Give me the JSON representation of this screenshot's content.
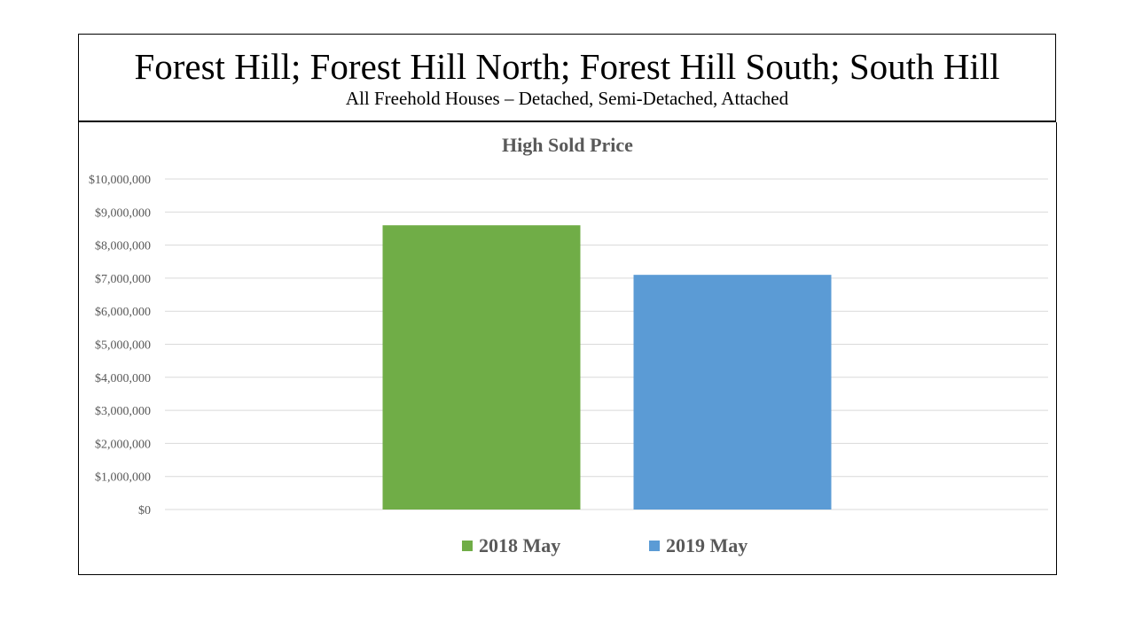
{
  "header": {
    "title": "Forest Hill; Forest Hill North; Forest Hill South; South Hill",
    "subtitle": "All Freehold Houses – Detached, Semi-Detached, Attached"
  },
  "chart_data": {
    "type": "bar",
    "title": "High Sold Price",
    "categories": [
      ""
    ],
    "series": [
      {
        "name": "2018 May",
        "values": [
          8600000
        ],
        "color": "#70AD47"
      },
      {
        "name": "2019 May",
        "values": [
          7100000
        ],
        "color": "#5B9BD5"
      }
    ],
    "ylim": [
      0,
      10000000
    ],
    "yticks": [
      "$0",
      "$1,000,000",
      "$2,000,000",
      "$3,000,000",
      "$4,000,000",
      "$5,000,000",
      "$6,000,000",
      "$7,000,000",
      "$8,000,000",
      "$9,000,000",
      "$10,000,000"
    ],
    "grid": true,
    "legend_position": "bottom",
    "gridline_color": "#D9D9D9"
  }
}
